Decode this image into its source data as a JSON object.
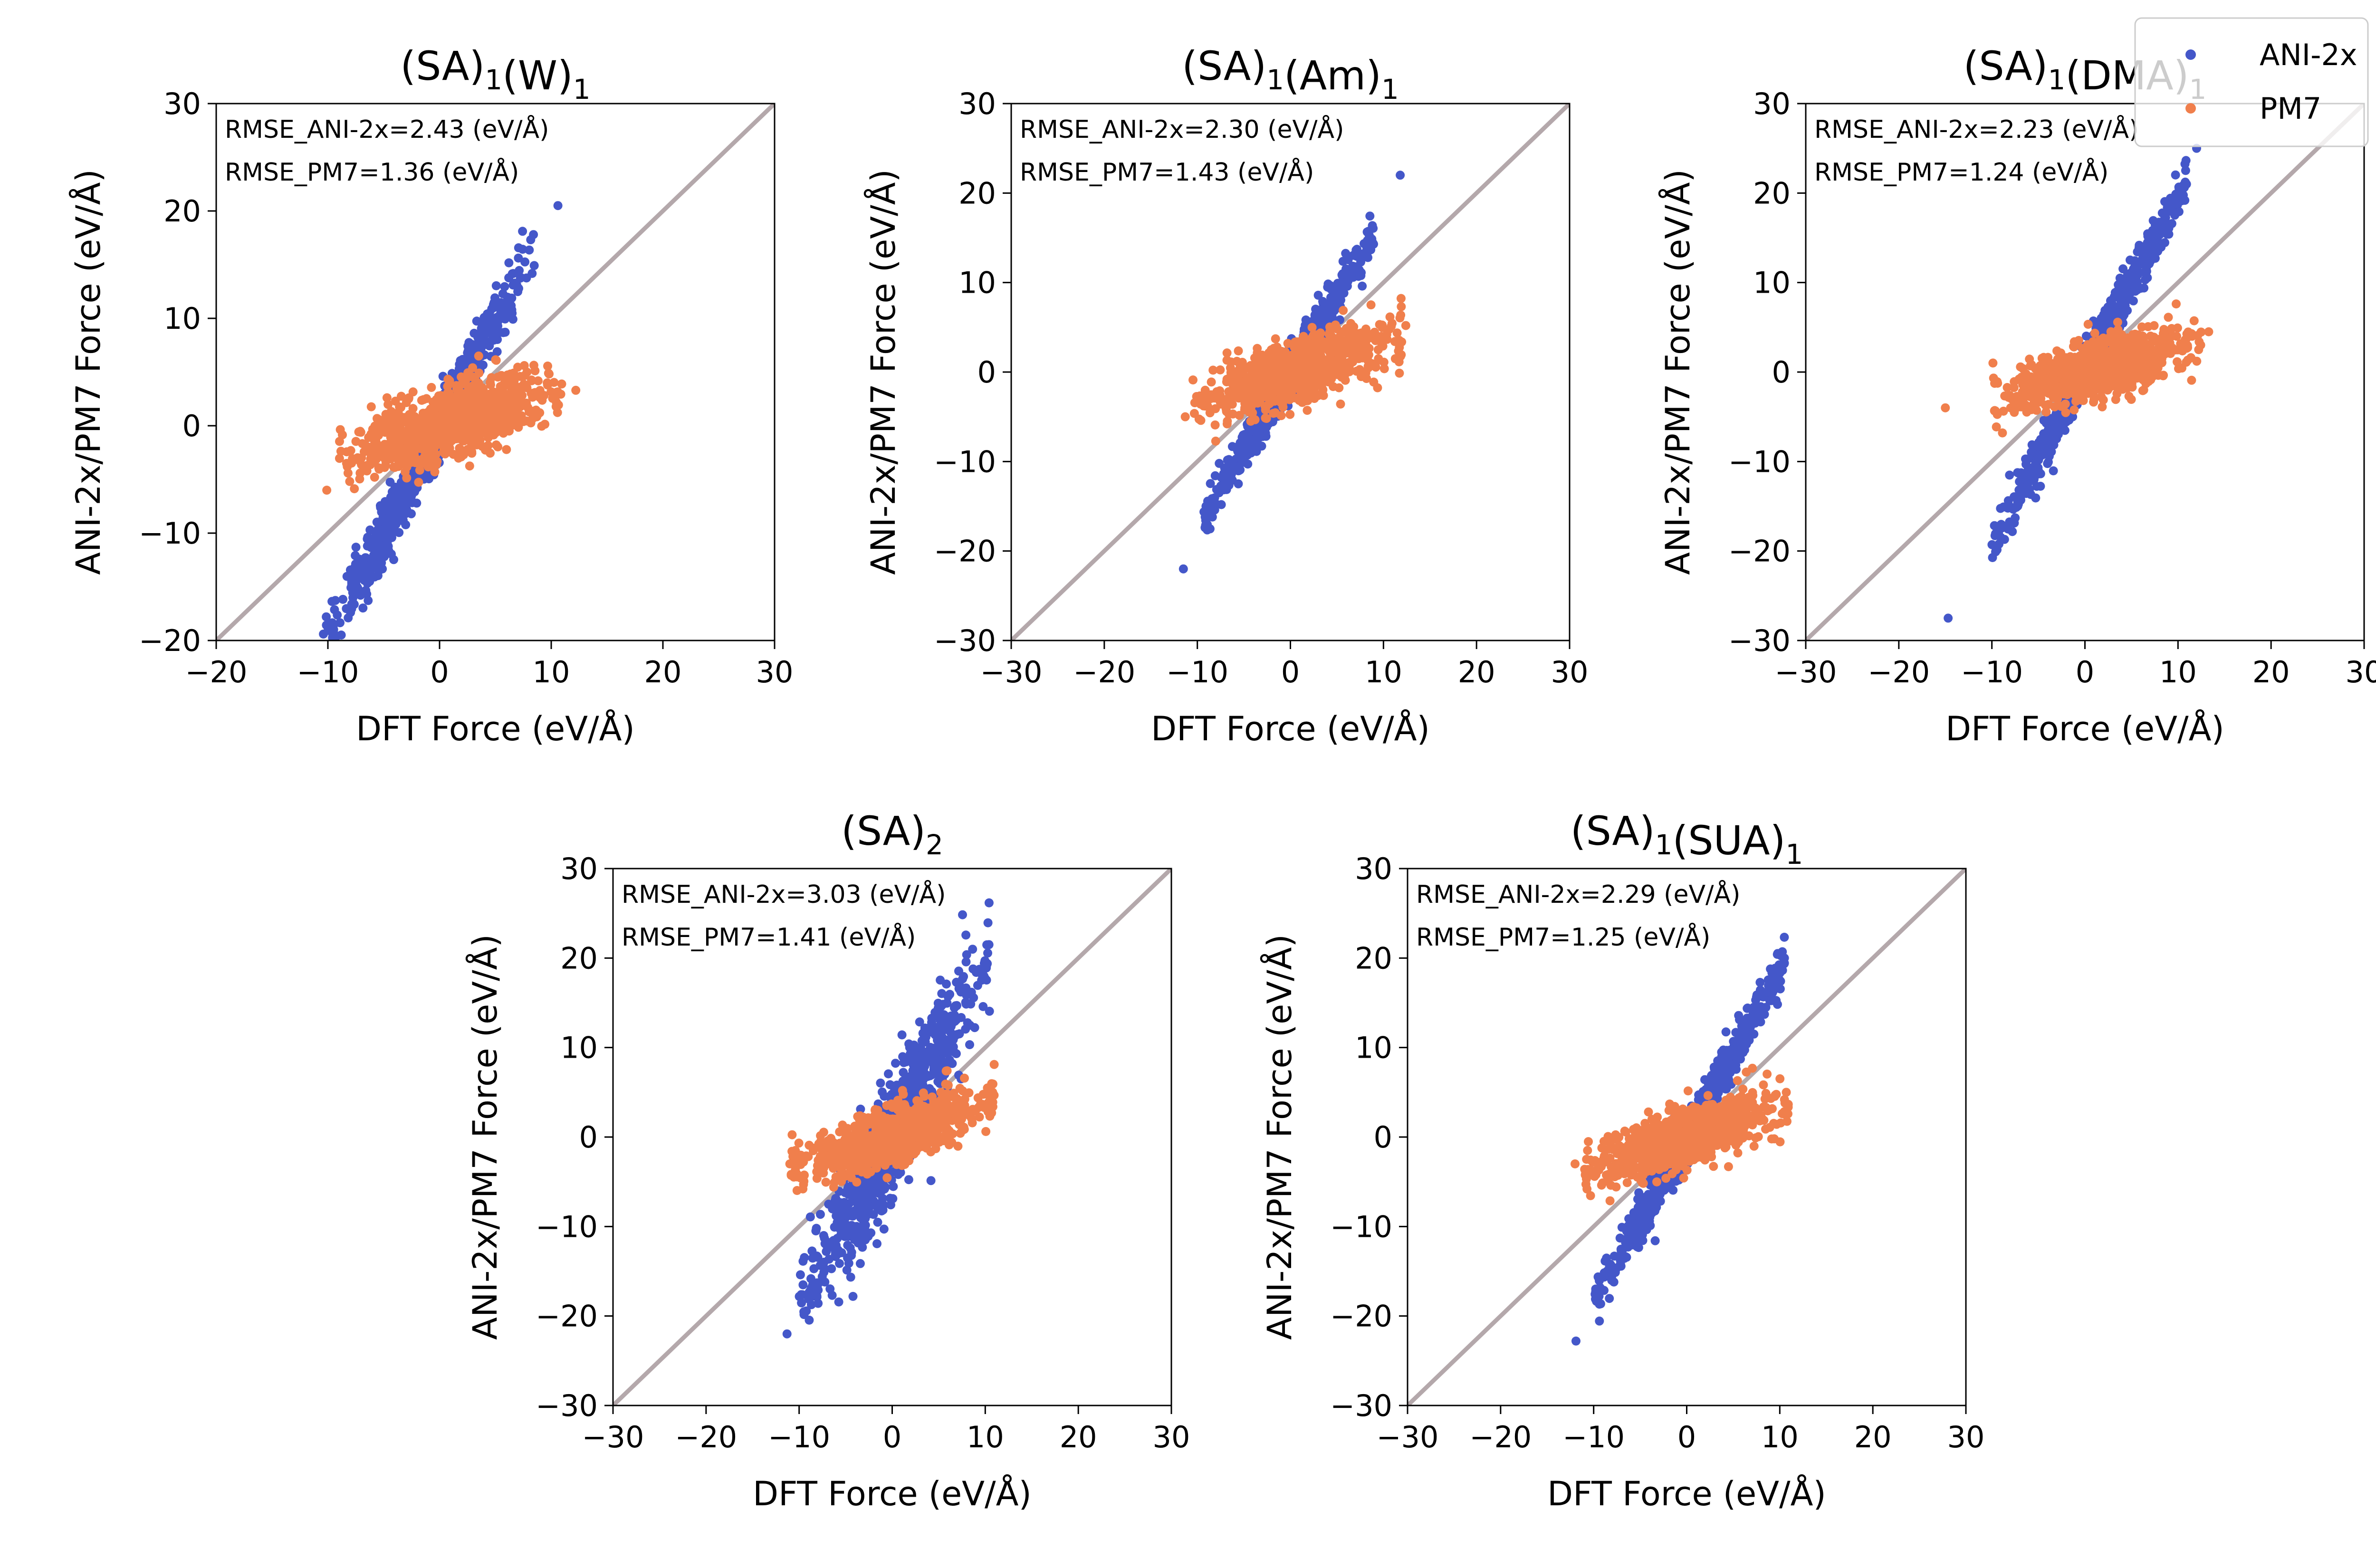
{
  "figure": {
    "legend": {
      "placement": "top-right",
      "entries": [
        {
          "label": "ANI-2x",
          "color": "#4457c9"
        },
        {
          "label": "PM7",
          "color": "#f07f4c"
        }
      ]
    },
    "parity_line_color": "#b4a8ab"
  },
  "chart_data": [
    {
      "type": "scatter",
      "title_base": "(SA)",
      "title_sub": "1",
      "title_mid": "(W)",
      "title_sub2": "1",
      "xlabel": "DFT Force (eV/Å)",
      "ylabel": "ANI-2x/PM7 Force (eV/Å)",
      "xlim": [
        -20,
        30
      ],
      "ylim": [
        -20,
        30
      ],
      "xticks": [
        -20,
        -10,
        0,
        10,
        20,
        30
      ],
      "yticks": [
        -20,
        -10,
        0,
        10,
        20,
        30
      ],
      "xtick_labels": [
        "−20",
        "−10",
        "0",
        "10",
        "20",
        "30"
      ],
      "ytick_labels": [
        "−20",
        "−10",
        "0",
        "10",
        "20",
        "30"
      ],
      "annotations": [
        "RMSE_ANI-2x=2.43 (eV/Å)",
        "RMSE_PM7=1.36 (eV/Å)"
      ],
      "series": [
        {
          "name": "ANI-2x",
          "slope": 1.98,
          "xrange": [
            -10.2,
            8.6
          ],
          "spread": 1.4,
          "outliers": [
            [
              10.6,
              20.5
            ],
            [
              -10.4,
              -19.4
            ]
          ]
        },
        {
          "name": "PM7",
          "slope": 0.33,
          "xrange": [
            -9.0,
            11.0
          ],
          "spread": 1.6,
          "outliers": [
            [
              -10.1,
              -6.0
            ],
            [
              12.2,
              3.3
            ]
          ]
        }
      ]
    },
    {
      "type": "scatter",
      "title_base": "(SA)",
      "title_sub": "1",
      "title_mid": "(Am)",
      "title_sub2": "1",
      "xlabel": "DFT Force (eV/Å)",
      "ylabel": "ANI-2x/PM7 Force (eV/Å)",
      "xlim": [
        -30,
        30
      ],
      "ylim": [
        -30,
        30
      ],
      "xticks": [
        -30,
        -20,
        -10,
        0,
        10,
        20,
        30
      ],
      "yticks": [
        -30,
        -20,
        -10,
        0,
        10,
        20,
        30
      ],
      "xtick_labels": [
        "−30",
        "−20",
        "−10",
        "0",
        "10",
        "20",
        "30"
      ],
      "ytick_labels": [
        "−30",
        "−20",
        "−10",
        "0",
        "10",
        "20",
        "30"
      ],
      "annotations": [
        "RMSE_ANI-2x=2.30 (eV/Å)",
        "RMSE_PM7=1.43 (eV/Å)"
      ],
      "series": [
        {
          "name": "ANI-2x",
          "slope": 1.72,
          "xrange": [
            -9.5,
            9.0
          ],
          "spread": 1.2,
          "outliers": [
            [
              11.8,
              22.0
            ],
            [
              -11.5,
              -22.0
            ]
          ]
        },
        {
          "name": "PM7",
          "slope": 0.35,
          "xrange": [
            -10.5,
            12.0
          ],
          "spread": 1.8,
          "outliers": [
            [
              -11.3,
              -5.0
            ],
            [
              12.4,
              5.2
            ]
          ]
        }
      ]
    },
    {
      "type": "scatter",
      "title_base": "(SA)",
      "title_sub": "1",
      "title_mid": "(DMA)",
      "title_sub2": "1",
      "xlabel": "DFT Force (eV/Å)",
      "ylabel": "ANI-2x/PM7 Force (eV/Å)",
      "xlim": [
        -30,
        30
      ],
      "ylim": [
        -30,
        30
      ],
      "xticks": [
        -30,
        -20,
        -10,
        0,
        10,
        20,
        30
      ],
      "yticks": [
        -30,
        -20,
        -10,
        0,
        10,
        20,
        30
      ],
      "xtick_labels": [
        "−30",
        "−20",
        "−10",
        "0",
        "10",
        "20",
        "30"
      ],
      "ytick_labels": [
        "−30",
        "−20",
        "−10",
        "0",
        "10",
        "20",
        "30"
      ],
      "annotations": [
        "RMSE_ANI-2x=2.23 (eV/Å)",
        "RMSE_PM7=1.24 (eV/Å)"
      ],
      "series": [
        {
          "name": "ANI-2x",
          "slope": 1.95,
          "xrange": [
            -10.0,
            11.0
          ],
          "spread": 1.3,
          "outliers": [
            [
              -14.7,
              -27.5
            ],
            [
              12.0,
              25.0
            ]
          ]
        },
        {
          "name": "PM7",
          "slope": 0.3,
          "xrange": [
            -10.0,
            12.5
          ],
          "spread": 1.7,
          "outliers": [
            [
              -15.0,
              -4.0
            ],
            [
              13.3,
              4.5
            ]
          ]
        }
      ]
    },
    {
      "type": "scatter",
      "title_base": "(SA)",
      "title_sub": "2",
      "title_mid": "",
      "title_sub2": "",
      "xlabel": "DFT Force (eV/Å)",
      "ylabel": "ANI-2x/PM7 Force (eV/Å)",
      "xlim": [
        -30,
        30
      ],
      "ylim": [
        -30,
        30
      ],
      "xticks": [
        -30,
        -20,
        -10,
        0,
        10,
        20,
        30
      ],
      "yticks": [
        -30,
        -20,
        -10,
        0,
        10,
        20,
        30
      ],
      "xtick_labels": [
        "−30",
        "−20",
        "−10",
        "0",
        "10",
        "20",
        "30"
      ],
      "ytick_labels": [
        "−30",
        "−20",
        "−10",
        "0",
        "10",
        "20",
        "30"
      ],
      "annotations": [
        "RMSE_ANI-2x=3.03 (eV/Å)",
        "RMSE_PM7=1.41 (eV/Å)"
      ],
      "series": [
        {
          "name": "ANI-2x",
          "slope": 1.9,
          "xrange": [
            -10.0,
            10.5
          ],
          "spread": 3.2,
          "outliers": [
            [
              -11.3,
              -22.0
            ],
            [
              10.4,
              21.5
            ]
          ]
        },
        {
          "name": "PM7",
          "slope": 0.38,
          "xrange": [
            -11.0,
            11.0
          ],
          "spread": 1.6,
          "outliers": [
            [
              -11.0,
              -3.0
            ],
            [
              10.8,
              5.0
            ]
          ]
        }
      ]
    },
    {
      "type": "scatter",
      "title_base": "(SA)",
      "title_sub": "1",
      "title_mid": "(SUA)",
      "title_sub2": "1",
      "xlabel": "DFT Force (eV/Å)",
      "ylabel": "ANI-2x/PM7 Force (eV/Å)",
      "xlim": [
        -30,
        30
      ],
      "ylim": [
        -30,
        30
      ],
      "xticks": [
        -30,
        -20,
        -10,
        0,
        10,
        20,
        30
      ],
      "yticks": [
        -30,
        -20,
        -10,
        0,
        10,
        20,
        30
      ],
      "xtick_labels": [
        "−30",
        "−20",
        "−10",
        "0",
        "10",
        "20",
        "30"
      ],
      "ytick_labels": [
        "−30",
        "−20",
        "−10",
        "0",
        "10",
        "20",
        "30"
      ],
      "annotations": [
        "RMSE_ANI-2x=2.29 (eV/Å)",
        "RMSE_PM7=1.25 (eV/Å)"
      ],
      "series": [
        {
          "name": "ANI-2x",
          "slope": 1.85,
          "xrange": [
            -10.0,
            10.5
          ],
          "spread": 1.3,
          "outliers": [
            [
              -11.9,
              -22.8
            ],
            [
              10.5,
              20.0
            ]
          ]
        },
        {
          "name": "PM7",
          "slope": 0.35,
          "xrange": [
            -11.0,
            11.0
          ],
          "spread": 1.6,
          "outliers": [
            [
              -12.0,
              -3.0
            ],
            [
              10.7,
              5.0
            ]
          ]
        }
      ]
    }
  ]
}
